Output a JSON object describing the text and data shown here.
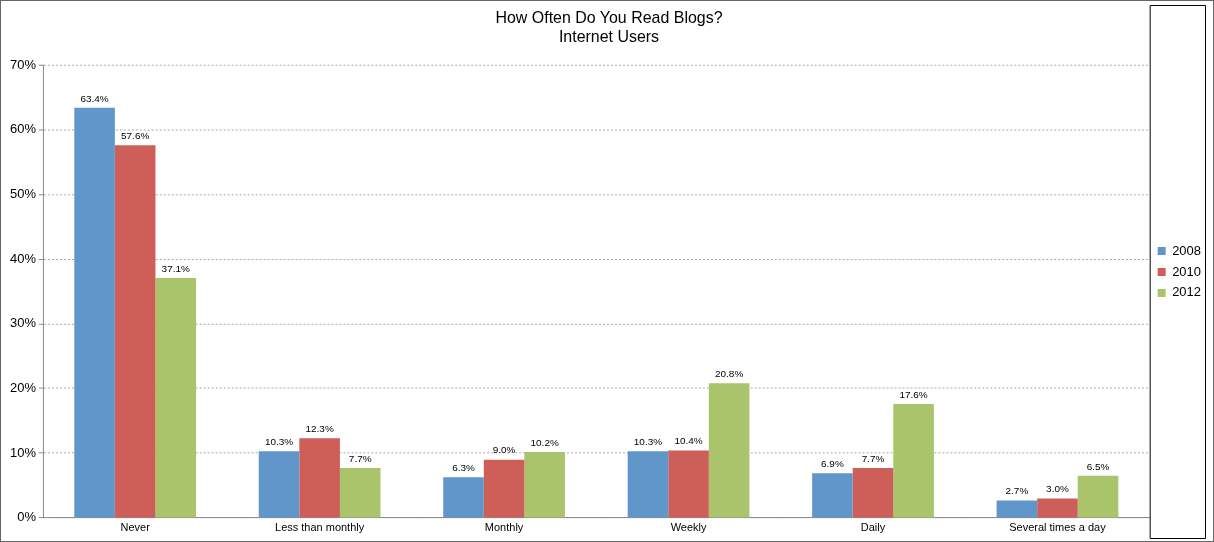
{
  "chart_data": {
    "type": "bar",
    "title": "How Often Do You Read Blogs?",
    "subtitle": "Internet Users",
    "categories": [
      "Never",
      "Less than monthly",
      "Monthly",
      "Weekly",
      "Daily",
      "Several times a day"
    ],
    "series": [
      {
        "name": "2008",
        "color": "#6096c9",
        "values": [
          63.4,
          10.3,
          6.3,
          10.3,
          6.9,
          2.7
        ],
        "value_labels": [
          "63.4%",
          "10.3%",
          "6.3%",
          "10.3%",
          "6.9%",
          "2.7%"
        ]
      },
      {
        "name": "2010",
        "color": "#cd5f58",
        "values": [
          57.6,
          12.3,
          9.0,
          10.4,
          7.7,
          3.0
        ],
        "value_labels": [
          "57.6%",
          "12.3%",
          "9.0%",
          "10.4%",
          "7.7%",
          "3.0%"
        ]
      },
      {
        "name": "2012",
        "color": "#a9c46a",
        "values": [
          37.1,
          7.7,
          10.2,
          20.8,
          17.6,
          6.5
        ],
        "value_labels": [
          "37.1%",
          "7.7%",
          "10.2%",
          "20.8%",
          "17.6%",
          "6.5%"
        ]
      }
    ],
    "ylim": [
      0,
      70
    ],
    "yticks": [
      {
        "value": 0,
        "label": "0%"
      },
      {
        "value": 10,
        "label": "10%"
      },
      {
        "value": 20,
        "label": "20%"
      },
      {
        "value": 30,
        "label": "30%"
      },
      {
        "value": 40,
        "label": "40%"
      },
      {
        "value": 50,
        "label": "50%"
      },
      {
        "value": 60,
        "label": "60%"
      },
      {
        "value": 70,
        "label": "70%"
      }
    ],
    "grid": "y",
    "legend": "right"
  }
}
